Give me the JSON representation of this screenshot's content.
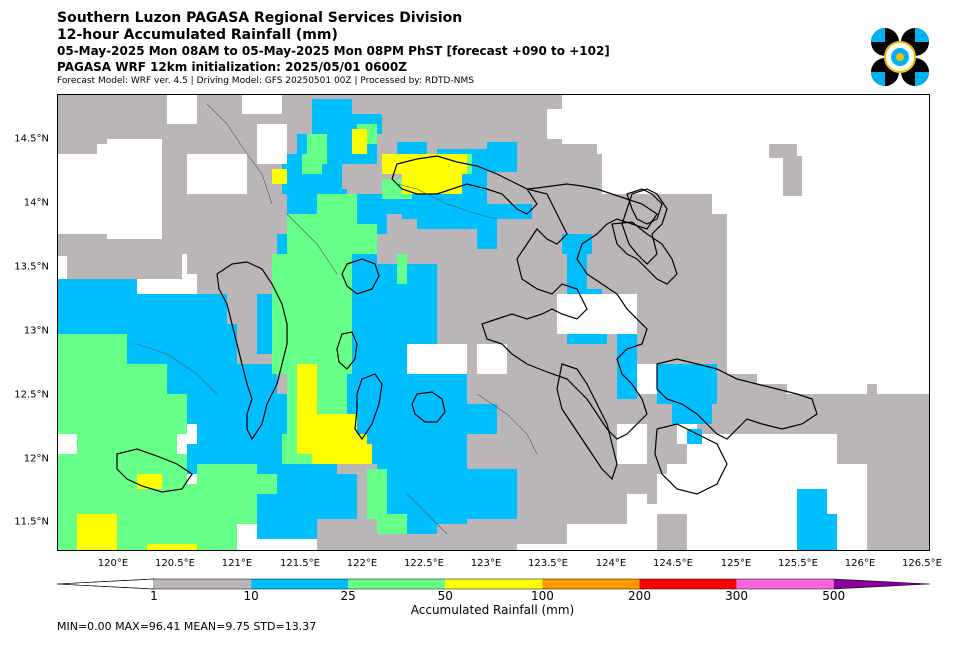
{
  "header": {
    "title": "Southern Luzon PAGASA Regional Services Division",
    "subtitle": "12-hour Accumulated Rainfall (mm)",
    "period": "05-May-2025 Mon 08AM to 05-May-2025 Mon 08PM PhST [forecast +090 to +102]",
    "init": "PAGASA WRF 12km initialization: 2025/05/01 0600Z",
    "model_info": "Forecast Model: WRF ver. 4.5 | Driving Model: GFS 20250501 00Z | Processed by: RDTD-NMS"
  },
  "map": {
    "lon_labels": [
      "120°E",
      "120.5°E",
      "121°E",
      "121.5°E",
      "122°E",
      "122.5°E",
      "123°E",
      "123.5°E",
      "124°E",
      "124.5°E",
      "125°E",
      "125.5°E",
      "126°E",
      "126.5°E"
    ],
    "lat_labels": [
      "14.5°N",
      "14°N",
      "13.5°N",
      "13°N",
      "12.5°N",
      "12°N",
      "11.5°N"
    ],
    "lon_range": [
      119.57,
      126.6
    ],
    "lat_range": [
      11.3,
      14.85
    ]
  },
  "colorbar": {
    "title": "Accumulated Rainfall (mm)",
    "levels": [
      "1",
      "10",
      "25",
      "50",
      "100",
      "200",
      "300",
      "500"
    ],
    "colors": [
      "#bab6b7",
      "#00bfff",
      "#66ff88",
      "#ffff00",
      "#ff9900",
      "#ff0000",
      "#ff66dd",
      "#880099"
    ]
  },
  "colors": {
    "trace": "#bab6b7",
    "light": "#00bfff",
    "moderate": "#66ff88",
    "heavy": "#ffff00",
    "outline": "#000000"
  },
  "stats": "MIN=0.00   MAX=96.41   MEAN=9.75   STD=13.37"
}
